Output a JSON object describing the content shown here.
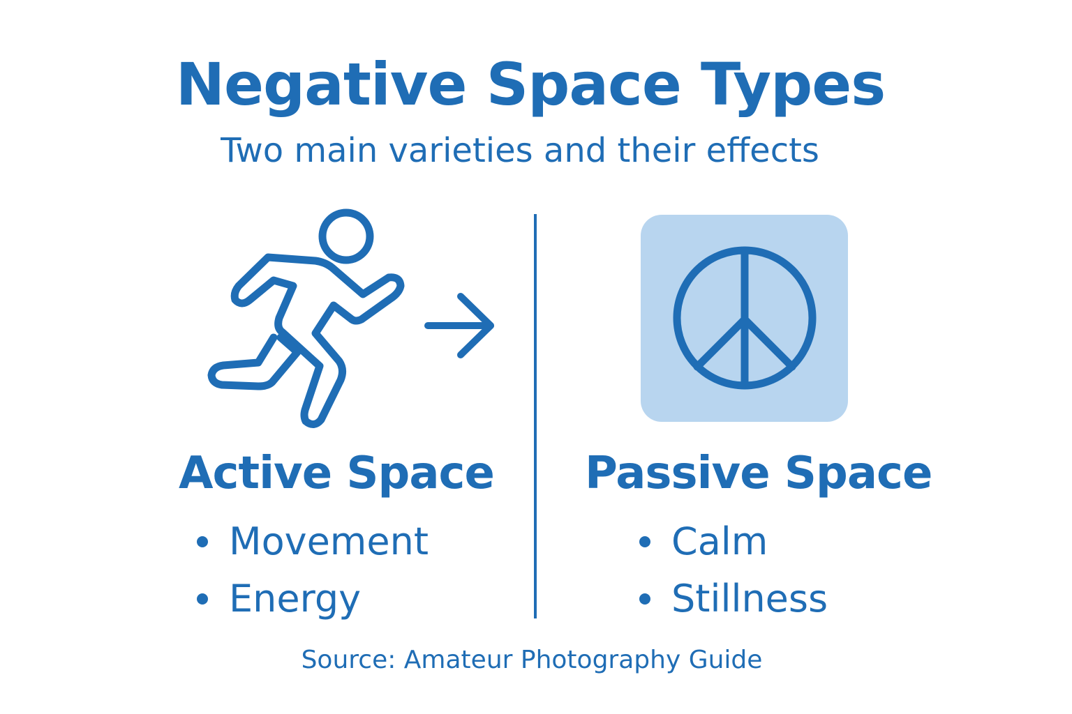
{
  "title": "Negative Space Types",
  "subtitle": "Two main varieties and their effects",
  "colors": {
    "accent": "#1f6db5",
    "peace_box": "#b8d5ef",
    "background": "#ffffff"
  },
  "active": {
    "icon": "running-person-icon",
    "arrow_icon": "arrow-right-icon",
    "heading": "Active Space",
    "items": [
      "Movement",
      "Energy"
    ]
  },
  "passive": {
    "icon": "peace-sign-icon",
    "heading": "Passive Space",
    "items": [
      "Calm",
      "Stillness"
    ]
  },
  "source": "Source: Amateur Photography Guide"
}
